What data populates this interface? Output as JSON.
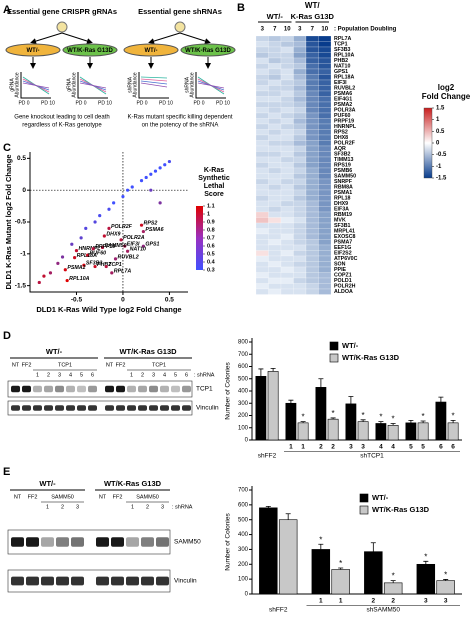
{
  "panels": [
    "A",
    "B",
    "C",
    "D",
    "E"
  ],
  "panel_a": {
    "left": {
      "title": "Essential gene CRISPR gRNAs",
      "cells": [
        "WT/-",
        "WT/K-Ras G13D"
      ],
      "ylabel": [
        "gRNA",
        "Abundance"
      ],
      "xticks": [
        "PD 0",
        "PD 10"
      ],
      "caption": [
        "Gene knockout leading to cell death",
        "regardless of K-Ras genotype"
      ]
    },
    "right": {
      "title": "Essential gene shRNAs",
      "cells": [
        "WT/-",
        "WT/K-Ras G13D"
      ],
      "ylabel": [
        "shRNA",
        "Abundance"
      ],
      "xticks": [
        "PD 0",
        "PD 10"
      ],
      "caption": [
        "K-Ras mutant specific killing dependent",
        "on the potency of the shRNA"
      ]
    }
  },
  "blots": [
    {
      "groups": [
        "WT/-",
        "WT/K-Ras G13D"
      ],
      "lanes": [
        "NT",
        "FF2",
        "1",
        "2",
        "3",
        "4",
        "5",
        "6"
      ],
      "target": "TCP1",
      "shrna_label": ": shRNA",
      "bands": [
        "TCP1",
        "Vinculin"
      ]
    },
    {
      "groups": [
        "WT/-",
        "WT/K-Ras G13D"
      ],
      "lanes": [
        "NT",
        "FF2",
        "1",
        "2",
        "3"
      ],
      "target": "SAMM50",
      "shrna_label": ": shRNA",
      "bands": [
        "SAMM50",
        "Vinculin"
      ]
    }
  ],
  "chart_data": [
    {
      "type": "heatmap",
      "title": "WT/",
      "column_groups": [
        "WT/-",
        "K-Ras G13D"
      ],
      "columns": [
        3,
        7,
        10,
        3,
        7,
        10
      ],
      "column_axis_label": ": Population Doubling",
      "rows": [
        "RPL7A",
        "TCP1",
        "SF3B3",
        "RPL10A",
        "PHB2",
        "NAT10",
        "GPS1",
        "RPL18A",
        "EIF3I",
        "RUVBL2",
        "PSMA6",
        "EIF4G1",
        "PSMA2",
        "POLR3A",
        "PUF60",
        "PRPF19",
        "HNRNPL",
        "RPS2",
        "DHX8",
        "POLR2F",
        "AQR",
        "SF3B2",
        "TIMM13",
        "RPS19",
        "PSMB6",
        "SAMM50",
        "SNRPF",
        "RBM8A",
        "PSMA1",
        "RPL18",
        "DHX9",
        "EIF3A",
        "RBM19",
        "MVK",
        "SF3B1",
        "MRPL41",
        "EXOSC8",
        "PSMA7",
        "EEF1G",
        "EIF2S2",
        "ATP6V0C",
        "SON",
        "PPIE",
        "COPZ1",
        "POLD1",
        "POLR2H",
        "ALDOA"
      ],
      "values": [
        [
          -0.3,
          -0.4,
          -0.3,
          -0.6,
          -1.4,
          -1.5
        ],
        [
          -0.2,
          -0.3,
          -0.4,
          -0.5,
          -1.3,
          -1.5
        ],
        [
          -0.3,
          -0.3,
          -0.2,
          -0.6,
          -1.3,
          -1.4
        ],
        [
          -0.4,
          -0.3,
          -0.3,
          -0.7,
          -1.2,
          -1.4
        ],
        [
          -0.2,
          -0.4,
          -0.3,
          -0.5,
          -1.2,
          -1.3
        ],
        [
          -0.3,
          -0.2,
          -0.3,
          -0.4,
          -1.1,
          -1.3
        ],
        [
          -0.2,
          -0.3,
          -0.2,
          -0.6,
          -1.1,
          -1.2
        ],
        [
          -0.3,
          -0.4,
          -0.2,
          -0.5,
          -1.0,
          -1.3
        ],
        [
          -0.3,
          -0.2,
          -0.3,
          -0.4,
          -1.0,
          -1.2
        ],
        [
          -0.2,
          -0.3,
          -0.3,
          -0.5,
          -1.0,
          -1.2
        ],
        [
          -0.3,
          -0.3,
          -0.2,
          -0.4,
          -0.9,
          -1.2
        ],
        [
          -0.2,
          -0.2,
          -0.3,
          -0.5,
          -0.9,
          -1.1
        ],
        [
          -0.3,
          -0.3,
          -0.3,
          -0.4,
          -0.9,
          -1.1
        ],
        [
          -0.2,
          -0.3,
          -0.2,
          -0.3,
          -0.9,
          -1.1
        ],
        [
          -0.3,
          -0.2,
          -0.3,
          -0.4,
          -0.8,
          -1.1
        ],
        [
          -0.2,
          -0.3,
          -0.2,
          -0.5,
          -0.8,
          -1.0
        ],
        [
          -0.3,
          -0.2,
          -0.3,
          -0.4,
          -0.8,
          -1.0
        ],
        [
          -0.2,
          -0.3,
          -0.2,
          -0.3,
          -0.8,
          -1.0
        ],
        [
          -0.3,
          -0.2,
          -0.2,
          -0.4,
          -0.8,
          -1.0
        ],
        [
          -0.2,
          -0.3,
          -0.3,
          -0.5,
          -0.7,
          -1.0
        ],
        [
          -0.2,
          -0.2,
          -0.2,
          -0.3,
          -0.7,
          -0.9
        ],
        [
          -0.3,
          -0.3,
          -0.2,
          -0.4,
          -0.7,
          -0.9
        ],
        [
          -0.2,
          -0.2,
          -0.3,
          -0.3,
          -0.7,
          -0.9
        ],
        [
          -0.3,
          -0.2,
          -0.2,
          -0.4,
          -0.7,
          -0.9
        ],
        [
          -0.2,
          -0.3,
          -0.2,
          -0.3,
          -0.6,
          -0.9
        ],
        [
          -0.2,
          -0.2,
          -0.2,
          -0.4,
          -0.6,
          -0.9
        ],
        [
          -0.3,
          -0.2,
          -0.3,
          -0.3,
          -0.6,
          -0.8
        ],
        [
          -0.2,
          -0.3,
          -0.2,
          -0.4,
          -0.6,
          -0.8
        ],
        [
          -0.2,
          -0.2,
          -0.2,
          -0.3,
          -0.6,
          -0.8
        ],
        [
          -0.3,
          -0.2,
          -0.2,
          -0.4,
          -0.6,
          -0.8
        ],
        [
          -0.2,
          -0.2,
          -0.3,
          -0.3,
          -0.5,
          -0.8
        ],
        [
          -0.2,
          -0.3,
          -0.2,
          -0.3,
          -0.5,
          -0.8
        ],
        [
          0.3,
          -0.2,
          -0.2,
          -0.3,
          -0.5,
          -0.7
        ],
        [
          0.4,
          0.2,
          -0.1,
          -0.2,
          -0.5,
          -0.7
        ],
        [
          -0.2,
          -0.2,
          -0.2,
          -0.3,
          -0.5,
          -0.7
        ],
        [
          -0.1,
          -0.2,
          -0.2,
          -0.3,
          -0.5,
          -0.7
        ],
        [
          -0.2,
          -0.2,
          -0.1,
          -0.3,
          -0.5,
          -0.7
        ],
        [
          -0.2,
          -0.1,
          -0.2,
          -0.3,
          -0.4,
          -0.7
        ],
        [
          -0.2,
          -0.2,
          -0.2,
          -0.2,
          -0.4,
          -0.6
        ],
        [
          0.2,
          -0.2,
          -0.1,
          -0.3,
          -0.4,
          -0.6
        ],
        [
          -0.1,
          -0.2,
          -0.2,
          -0.2,
          -0.4,
          -0.6
        ],
        [
          -0.2,
          -0.1,
          -0.2,
          -0.3,
          -0.4,
          -0.6
        ],
        [
          -0.2,
          -0.2,
          -0.1,
          -0.2,
          -0.4,
          -0.6
        ],
        [
          -0.1,
          -0.2,
          -0.2,
          -0.2,
          -0.4,
          -0.5
        ],
        [
          -0.2,
          -0.1,
          -0.1,
          -0.3,
          -0.4,
          -0.5
        ],
        [
          -0.1,
          -0.2,
          -0.2,
          -0.2,
          -0.3,
          -0.5
        ],
        [
          -0.2,
          -0.1,
          -0.2,
          -0.2,
          -0.3,
          -0.5
        ]
      ],
      "colorbar_label": [
        "log2",
        "Fold Change"
      ],
      "zlim": [
        -1.5,
        1.5
      ],
      "zticks": [
        1.5,
        1,
        0.5,
        0,
        -0.5,
        -1,
        -1.5
      ]
    },
    {
      "type": "scatter",
      "xlabel": "DLD1 K-Ras Wild Type log2 Fold Change",
      "ylabel": "DLD1 K-Ras Mutant log2 Fold Change",
      "x": [
        0.2,
        -0.15,
        0.22,
        -0.2,
        -0.02,
        0.22,
        0.02,
        -0.22,
        0.05,
        -0.5,
        -0.32,
        -0.38,
        -0.52,
        -0.08,
        -0.42,
        -0.3,
        -0.18,
        -0.12,
        -0.62,
        -0.6,
        -0.9,
        -0.85,
        -0.78,
        -0.7,
        -0.65,
        -0.55,
        -0.45,
        -0.4,
        -0.3,
        -0.25,
        -0.15,
        -0.1,
        0.0,
        0.05,
        0.1,
        0.2,
        0.25,
        0.3,
        0.35,
        0.4,
        0.45,
        0.5,
        0.3,
        0.4
      ],
      "y": [
        -0.55,
        -0.6,
        -0.65,
        -0.72,
        -0.78,
        -0.88,
        -0.88,
        -0.9,
        -0.96,
        -0.95,
        -0.92,
        -1.02,
        -1.06,
        -1.08,
        -1.18,
        -1.2,
        -1.2,
        -1.3,
        -1.25,
        -1.42,
        -1.45,
        -1.35,
        -1.3,
        -1.15,
        -1.05,
        -0.85,
        -0.75,
        -0.6,
        -0.5,
        -0.4,
        -0.3,
        -0.2,
        -0.1,
        0.0,
        0.05,
        0.15,
        0.2,
        0.25,
        0.3,
        0.35,
        0.4,
        0.45,
        0.0,
        -0.2
      ],
      "score": [
        1.0,
        0.9,
        0.8,
        0.95,
        0.9,
        0.7,
        0.85,
        0.9,
        0.8,
        0.95,
        0.9,
        1.0,
        1.0,
        0.75,
        1.05,
        1.0,
        0.9,
        0.8,
        1.05,
        1.1,
        0.9,
        0.95,
        0.8,
        0.7,
        0.6,
        0.5,
        0.45,
        0.4,
        0.4,
        0.35,
        0.35,
        0.3,
        0.3,
        0.3,
        0.3,
        0.3,
        0.3,
        0.3,
        0.3,
        0.3,
        0.3,
        0.35,
        0.5,
        0.6
      ],
      "labels": [
        "RPS2",
        "POLR2F",
        "PSMA6",
        "DHX9",
        "POLR2A",
        "GPS1",
        "EIF3I",
        "SAMM50",
        "NAT10",
        "HNRNPL",
        "PRPF19",
        "PUF60",
        "RPL18A",
        "RUVBL2",
        "SF3B3",
        "PHB2",
        "TCP1",
        "RPL7A",
        "PSMA2",
        "RPL10A",
        null,
        null,
        null,
        null,
        null,
        null,
        null,
        null,
        null,
        null,
        null,
        null,
        null,
        null,
        null,
        null,
        null,
        null,
        null,
        null,
        null,
        null,
        null,
        null
      ],
      "xlim": [
        -1.0,
        0.7
      ],
      "ylim": [
        -1.6,
        0.6
      ],
      "xticks": [
        -0.5,
        0,
        0.5
      ],
      "yticks": [
        0.5,
        0,
        -0.5,
        -1,
        -1.5
      ],
      "zero_lines": true,
      "colorbar_label": [
        "K-Ras",
        "Synthetic",
        "Lethal",
        "Score"
      ],
      "zlim": [
        0.3,
        1.1
      ],
      "zticks": [
        1.1,
        1,
        0.9,
        0.8,
        0.7,
        0.6,
        0.5,
        0.4,
        0.3
      ]
    },
    {
      "type": "bar",
      "ylabel": "Number of Colonies",
      "categories": [
        null,
        "1",
        "2",
        "3",
        "4",
        "5",
        "6"
      ],
      "x_groups": [
        "shFF2",
        "shTCP1"
      ],
      "series": [
        {
          "name": "WT/-",
          "color": "#000000",
          "values": [
            520,
            300,
            430,
            295,
            135,
            140,
            310
          ],
          "errors": [
            60,
            25,
            70,
            60,
            15,
            20,
            40
          ],
          "stars": [
            null,
            null,
            null,
            null,
            "*",
            null,
            null
          ]
        },
        {
          "name": "WT/K-Ras G13D",
          "color": "#c8c8c8",
          "values": [
            560,
            140,
            170,
            150,
            120,
            140,
            140
          ],
          "errors": [
            25,
            10,
            10,
            15,
            15,
            15,
            20
          ],
          "stars": [
            null,
            "*",
            "*",
            "*",
            "*",
            "*",
            "*"
          ]
        }
      ],
      "ylim": [
        0,
        800
      ],
      "yticks": [
        0,
        100,
        200,
        300,
        400,
        500,
        600,
        700,
        800
      ]
    },
    {
      "type": "bar",
      "ylabel": "Number of Colonies",
      "categories": [
        null,
        "1",
        "2",
        "3"
      ],
      "x_groups": [
        "shFF2",
        "shSAMM50"
      ],
      "series": [
        {
          "name": "WT/-",
          "color": "#000000",
          "values": [
            580,
            300,
            285,
            200
          ],
          "errors": [
            10,
            35,
            60,
            20
          ],
          "stars": [
            null,
            "*",
            null,
            "*"
          ]
        },
        {
          "name": "WT/K-Ras G13D",
          "color": "#c8c8c8",
          "values": [
            500,
            165,
            75,
            90
          ],
          "errors": [
            40,
            10,
            15,
            8
          ],
          "stars": [
            null,
            "*",
            "*",
            "*"
          ]
        }
      ],
      "ylim": [
        0,
        700
      ],
      "yticks": [
        0,
        100,
        200,
        300,
        400,
        500,
        600,
        700
      ]
    }
  ]
}
